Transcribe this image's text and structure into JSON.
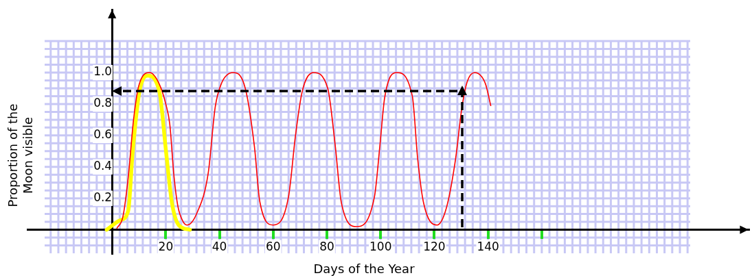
{
  "chart_data": {
    "type": "line",
    "xlabel": "Days of the Year",
    "ylabel": "Proportion of the Moon visible",
    "xlim": [
      -31.5,
      237
    ],
    "ylim": [
      -0.15,
      1.4
    ],
    "xticks": [
      20,
      40,
      60,
      80,
      100,
      120,
      140,
      {
        "value": 160,
        "label": null
      }
    ],
    "yticks": [
      0.2,
      0.4,
      0.6,
      0.8,
      {
        "value": 1,
        "label": "1.0"
      }
    ],
    "grid": true,
    "legend": false,
    "marker": "none",
    "series": [
      {
        "color": "#ff0000",
        "line_style": "solid",
        "x": [
          1.8,
          4,
          6,
          8,
          10,
          14,
          17.5,
          20,
          21.5,
          23,
          24.5,
          26.5,
          28,
          31.7,
          35.8,
          38.4,
          40.7,
          45,
          49.6,
          53,
          55,
          60,
          65.7,
          68.3,
          70.8,
          75,
          80.3,
          83,
          85.4,
          91,
          97.7,
          99.7,
          101.5,
          106,
          111.8,
          113.8,
          116,
          121,
          124.5,
          127.9,
          130.2,
          132.2,
          135,
          139,
          141
        ],
        "values": [
          0.01,
          0.08,
          0.33,
          0.7,
          0.92,
          1.0,
          0.93,
          0.8,
          0.67,
          0.35,
          0.15,
          0.05,
          0.03,
          0.11,
          0.36,
          0.78,
          0.93,
          1.0,
          0.9,
          0.53,
          0.18,
          0.03,
          0.21,
          0.6,
          0.88,
          1.0,
          0.9,
          0.55,
          0.17,
          0.02,
          0.21,
          0.53,
          0.84,
          1.0,
          0.85,
          0.45,
          0.17,
          0.03,
          0.14,
          0.45,
          0.77,
          0.94,
          1.0,
          0.93,
          0.79
        ]
      },
      {
        "color": "#ffff00",
        "line_style": "solid",
        "x": [
          -2,
          3,
          6,
          7.7,
          10.2,
          13.3,
          17.6,
          20.2,
          22.3,
          24.8,
          29
        ],
        "values": [
          0,
          0.06,
          0.12,
          0.5,
          0.88,
          0.98,
          0.88,
          0.48,
          0.17,
          0.03,
          0
        ]
      }
    ]
  }
}
